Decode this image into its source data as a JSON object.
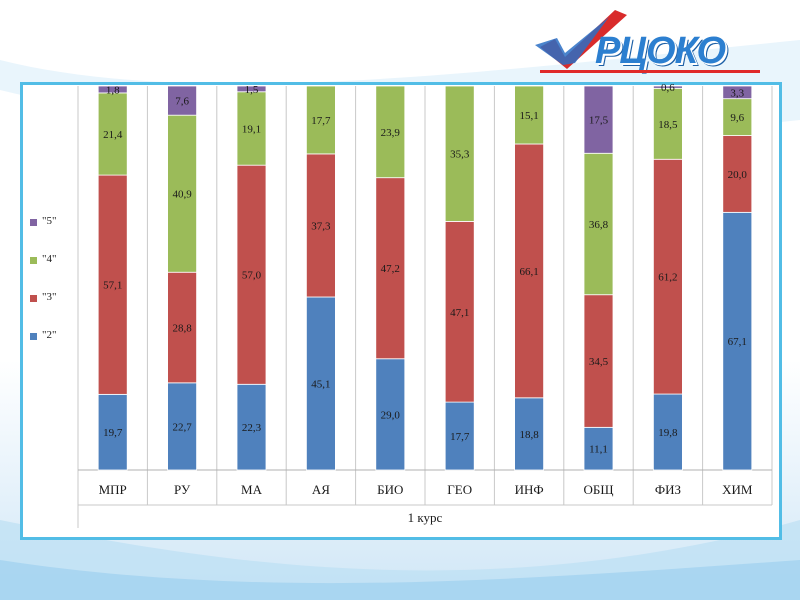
{
  "logo": {
    "text": "РЦОКО"
  },
  "chart_data": {
    "type": "bar",
    "stacked": true,
    "normalized": true,
    "xlabel": "1 курс",
    "ylabel": "",
    "categories": [
      "МПР",
      "РУ",
      "МА",
      "АЯ",
      "БИО",
      "ГЕО",
      "ИНФ",
      "ОБЩ",
      "ФИЗ",
      "ХИМ"
    ],
    "series": [
      {
        "name": "\"2\"",
        "color": "#4f81bd",
        "values": [
          19.7,
          22.7,
          22.3,
          45.1,
          29.0,
          17.7,
          18.8,
          11.1,
          19.8,
          67.1
        ],
        "labels": [
          "19,7",
          "22,7",
          "22,3",
          "45,1",
          "29,0",
          "17,7",
          "18,8",
          "11,1",
          "19,8",
          "67,1"
        ]
      },
      {
        "name": "\"3\"",
        "color": "#c0504d",
        "values": [
          57.1,
          28.8,
          57.0,
          37.3,
          47.2,
          47.1,
          66.1,
          34.5,
          61.2,
          20.0
        ],
        "labels": [
          "57,1",
          "28,8",
          "57,0",
          "37,3",
          "47,2",
          "47,1",
          "66,1",
          "34,5",
          "61,2",
          "20,0"
        ]
      },
      {
        "name": "\"4\"",
        "color": "#9bbb59",
        "values": [
          21.4,
          40.9,
          19.1,
          17.7,
          23.9,
          35.3,
          15.1,
          36.8,
          18.5,
          9.6
        ],
        "labels": [
          "21,4",
          "40,9",
          "19,1",
          "17,7",
          "23,9",
          "35,3",
          "15,1",
          "36,8",
          "18,5",
          "9,6"
        ]
      },
      {
        "name": "\"5\"",
        "color": "#8064a2",
        "values": [
          1.8,
          7.6,
          1.5,
          0,
          0,
          0,
          0,
          17.5,
          0.6,
          3.3
        ],
        "labels": [
          "1,8",
          "7,6",
          "1,5",
          "",
          "",
          "",
          "",
          "17,5",
          "0,6",
          "3,3"
        ]
      }
    ],
    "legend_position": "left",
    "legend_order": [
      "\"5\"",
      "\"4\"",
      "\"3\"",
      "\"2\""
    ],
    "grid": false
  }
}
